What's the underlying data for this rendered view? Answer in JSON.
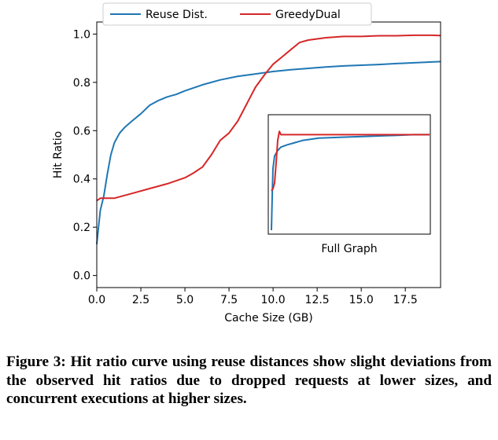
{
  "chart_data": {
    "type": "line",
    "xlabel": "Cache Size (GB)",
    "ylabel": "Hit Ratio",
    "xlim": [
      0,
      19.5
    ],
    "ylim": [
      -0.05,
      1.05
    ],
    "xticks": [
      0.0,
      2.5,
      5.0,
      7.5,
      10.0,
      12.5,
      15.0,
      17.5
    ],
    "xtick_labels": [
      "0.0",
      "2.5",
      "5.0",
      "7.5",
      "10.0",
      "12.5",
      "15.0",
      "17.5"
    ],
    "yticks": [
      0.0,
      0.2,
      0.4,
      0.6,
      0.8,
      1.0
    ],
    "ytick_labels": [
      "0.0",
      "0.2",
      "0.4",
      "0.6",
      "0.8",
      "1.0"
    ],
    "grid": false,
    "legend_position": "top-center",
    "series": [
      {
        "name": "Reuse Dist.",
        "color": "#1f77b4",
        "x": [
          0.0,
          0.1,
          0.2,
          0.4,
          0.6,
          0.8,
          1.0,
          1.3,
          1.6,
          2.0,
          2.5,
          3.0,
          3.5,
          4.0,
          4.5,
          5.0,
          6.0,
          7.0,
          8.0,
          9.0,
          10.0,
          11.0,
          12.0,
          13.0,
          14.0,
          15.0,
          16.0,
          17.0,
          18.0,
          19.5
        ],
        "y": [
          0.13,
          0.2,
          0.27,
          0.33,
          0.42,
          0.5,
          0.55,
          0.59,
          0.615,
          0.64,
          0.67,
          0.705,
          0.725,
          0.74,
          0.75,
          0.765,
          0.79,
          0.81,
          0.825,
          0.835,
          0.845,
          0.852,
          0.858,
          0.864,
          0.868,
          0.871,
          0.874,
          0.878,
          0.881,
          0.886
        ]
      },
      {
        "name": "GreedyDual",
        "color": "#d62728",
        "x": [
          0.0,
          0.2,
          0.5,
          1.0,
          1.5,
          2.0,
          3.0,
          4.0,
          5.0,
          5.5,
          6.0,
          6.5,
          7.0,
          7.5,
          8.0,
          8.5,
          9.0,
          9.5,
          10.0,
          10.5,
          11.0,
          11.5,
          12.0,
          12.5,
          13.0,
          14.0,
          15.0,
          16.0,
          17.0,
          18.0,
          19.0,
          19.5
        ],
        "y": [
          0.31,
          0.32,
          0.32,
          0.32,
          0.33,
          0.34,
          0.36,
          0.38,
          0.405,
          0.425,
          0.45,
          0.5,
          0.56,
          0.59,
          0.64,
          0.71,
          0.78,
          0.83,
          0.875,
          0.905,
          0.935,
          0.965,
          0.975,
          0.98,
          0.985,
          0.99,
          0.99,
          0.993,
          0.993,
          0.995,
          0.995,
          0.994
        ]
      }
    ],
    "inset": {
      "label": "Full Graph",
      "series": [
        {
          "name": "Reuse Dist.",
          "color": "#1f77b4",
          "x": [
            0.0,
            0.005,
            0.01,
            0.02,
            0.04,
            0.06,
            0.1,
            0.15,
            0.2,
            0.3,
            0.4,
            0.5,
            0.6,
            0.7,
            0.8,
            0.9,
            1.0
          ],
          "y": [
            0.0,
            0.3,
            0.55,
            0.66,
            0.71,
            0.74,
            0.76,
            0.78,
            0.8,
            0.82,
            0.825,
            0.83,
            0.835,
            0.84,
            0.845,
            0.85,
            0.85
          ]
        },
        {
          "name": "GreedyDual",
          "color": "#d62728",
          "x": [
            0.0,
            0.01,
            0.02,
            0.03,
            0.04,
            0.05,
            0.06,
            0.08,
            0.1,
            0.3,
            0.5,
            0.7,
            1.0
          ],
          "y": [
            0.35,
            0.37,
            0.42,
            0.6,
            0.8,
            0.88,
            0.85,
            0.85,
            0.85,
            0.85,
            0.85,
            0.85,
            0.85
          ]
        }
      ]
    }
  },
  "caption": "Figure 3: Hit ratio curve using reuse distances show slight deviations from the observed hit ratios due to dropped requests at lower sizes, and concurrent executions at higher sizes."
}
